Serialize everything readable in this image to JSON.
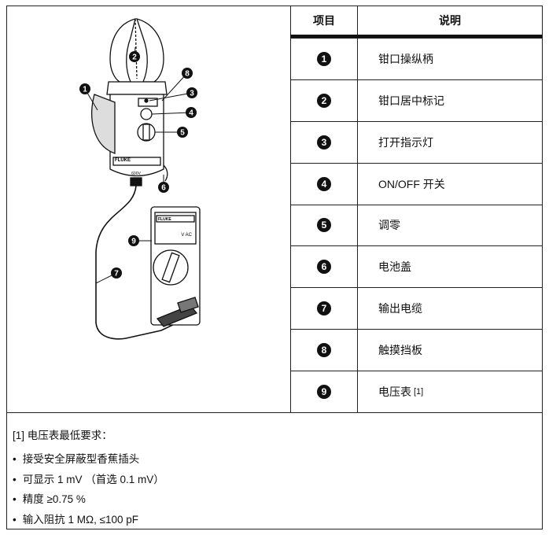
{
  "table": {
    "header": [
      "项目",
      "说明"
    ],
    "rows": [
      [
        "1",
        "钳口操纵柄"
      ],
      [
        "2",
        "钳口居中标记"
      ],
      [
        "3",
        "打开指示灯"
      ],
      [
        "4",
        "ON/OFF 开关"
      ],
      [
        "5",
        "调零"
      ],
      [
        "6",
        "电池盖"
      ],
      [
        "7",
        "输出电缆"
      ],
      [
        "8",
        "触摸挡板"
      ],
      [
        "9",
        "电压表"
      ]
    ],
    "row_note": "[1]"
  },
  "figure": {
    "callouts": [
      "2",
      "8",
      "1",
      "3",
      "4",
      "5",
      "6",
      "9",
      "7"
    ],
    "brand": "FLUKE",
    "rating": "600V",
    "meter_range": "V AC"
  },
  "footnote": {
    "title": "[1] 电压表最低要求：",
    "items": [
      "接受安全屏蔽型香蕉插头",
      "可显示 1 mV （首选 0.1 mV）",
      "精度 ≥0.75 %",
      "输入阻抗 1 MΩ, ≤100 pF"
    ]
  }
}
